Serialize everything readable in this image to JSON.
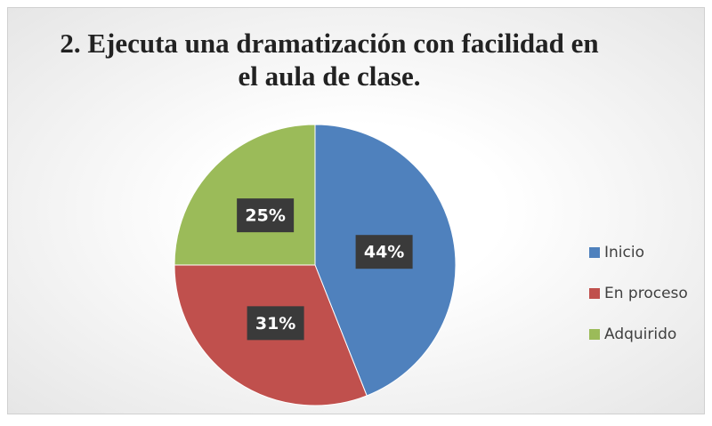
{
  "chart_data": {
    "type": "pie",
    "title": "2. Ejecuta una dramatización con facilidad en el aula de clase.",
    "categories": [
      "Inicio",
      "En proceso",
      "Adquirido"
    ],
    "values": [
      44,
      31,
      25
    ],
    "value_labels": [
      "44%",
      "31%",
      "25%"
    ],
    "colors": [
      "#4f81bd",
      "#c0504d",
      "#9bbb59"
    ],
    "legend": "right"
  }
}
